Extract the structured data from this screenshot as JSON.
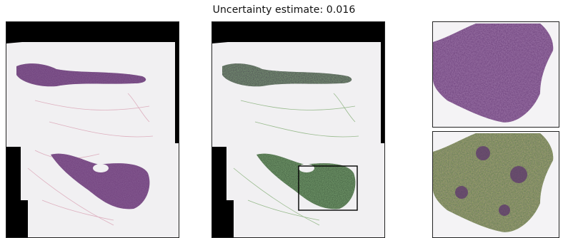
{
  "figure": {
    "title": "Uncertainty estimate: 0.016"
  },
  "colors": {
    "background_mask": "#000000",
    "tissue_background": "#f3f2f4",
    "tissue_stain": "#6b3f7a",
    "stroma_stain": "#d8a7b8",
    "overlay_green": "#4f8a3a",
    "overlay_yellow": "#c9a83a",
    "roi_box": "#000000"
  },
  "panels": [
    {
      "name": "original-slide",
      "overlay": false
    },
    {
      "name": "uncertainty-overlay-slide",
      "overlay": true,
      "roi_box": true
    },
    {
      "name": "zoomed-original",
      "overlay": false
    },
    {
      "name": "zoomed-overlay",
      "overlay": true
    }
  ]
}
